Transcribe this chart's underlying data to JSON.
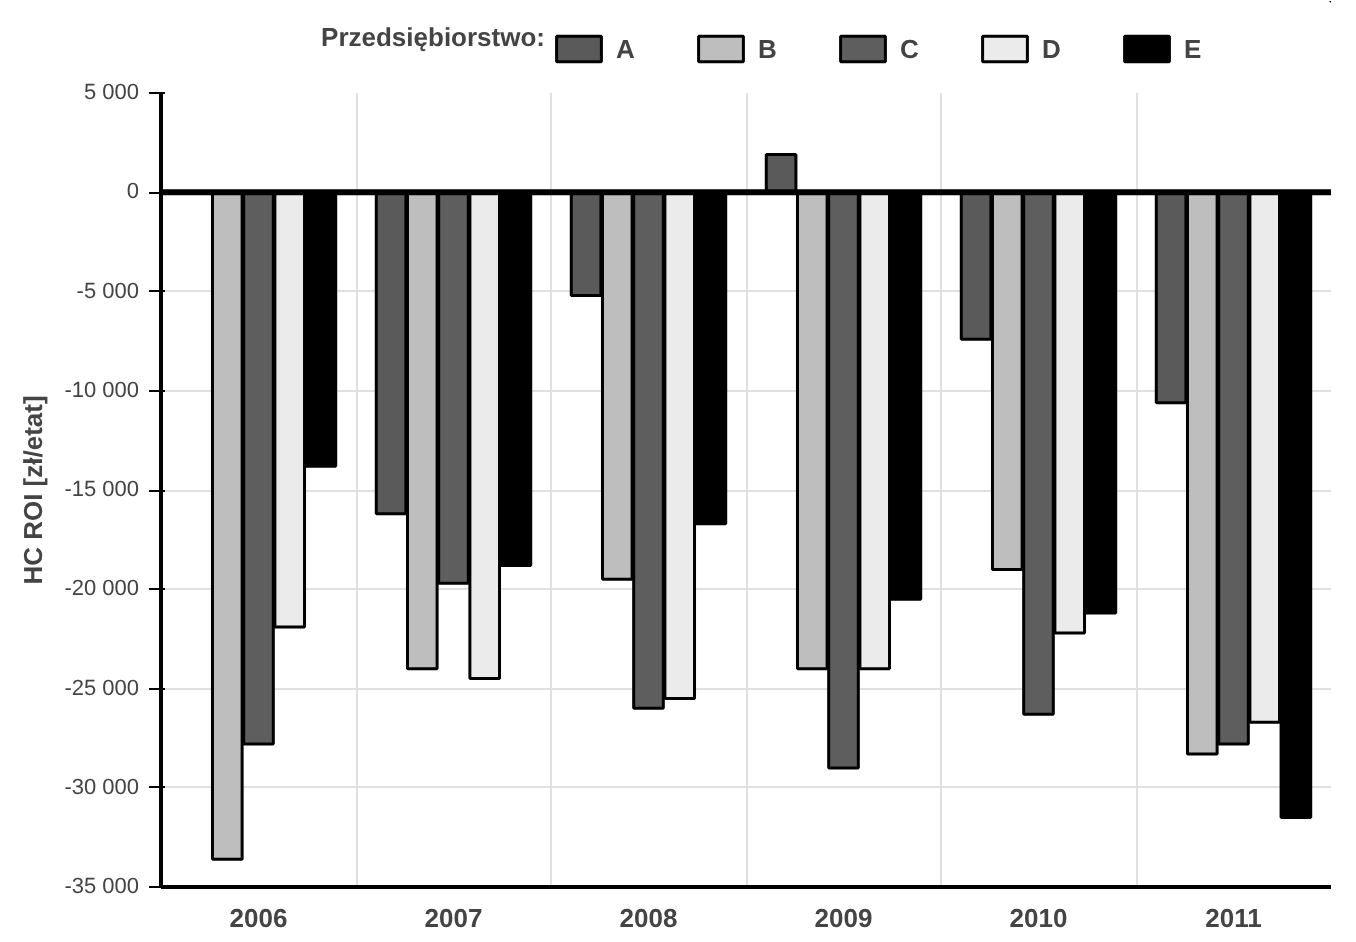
{
  "chart_data": {
    "type": "bar",
    "ylabel": "HC ROI [zł/etat]",
    "legend_title": "Przedsiębiorstwo:",
    "categories": [
      "2006",
      "2007",
      "2008",
      "2009",
      "2010",
      "2011"
    ],
    "series": [
      {
        "name": "A",
        "color": "#5a5a5a",
        "values": [
          null,
          -16200,
          -5200,
          1900,
          -7400,
          -10600
        ]
      },
      {
        "name": "B",
        "color": "#bebebe",
        "values": [
          -33600,
          -24000,
          -19500,
          -24000,
          -19000,
          -28300
        ]
      },
      {
        "name": "C",
        "color": "#5e5e5e",
        "values": [
          -27800,
          -19700,
          -26000,
          -29000,
          -26300,
          -27800
        ]
      },
      {
        "name": "D",
        "color": "#ebebeb",
        "values": [
          -21900,
          -24500,
          -25500,
          -24000,
          -22200,
          -26700
        ]
      },
      {
        "name": "E",
        "color": "#000000",
        "values": [
          -13800,
          -18800,
          -16700,
          -20500,
          -21200,
          -31500
        ]
      }
    ],
    "ylim": [
      -35000,
      5000
    ],
    "yticks": [
      {
        "value": 5000,
        "label": "5 000"
      },
      0,
      {
        "value": -5000,
        "label": "-5 000"
      },
      {
        "value": -10000,
        "label": "-10 000"
      },
      {
        "value": -15000,
        "label": "-15 000"
      },
      {
        "value": -20000,
        "label": "-20 000"
      },
      {
        "value": -25000,
        "label": "-25 000"
      },
      {
        "value": -30000,
        "label": "-30 000"
      },
      {
        "value": -35000,
        "label": "-35 000"
      }
    ],
    "grid": true,
    "legend": "top"
  }
}
